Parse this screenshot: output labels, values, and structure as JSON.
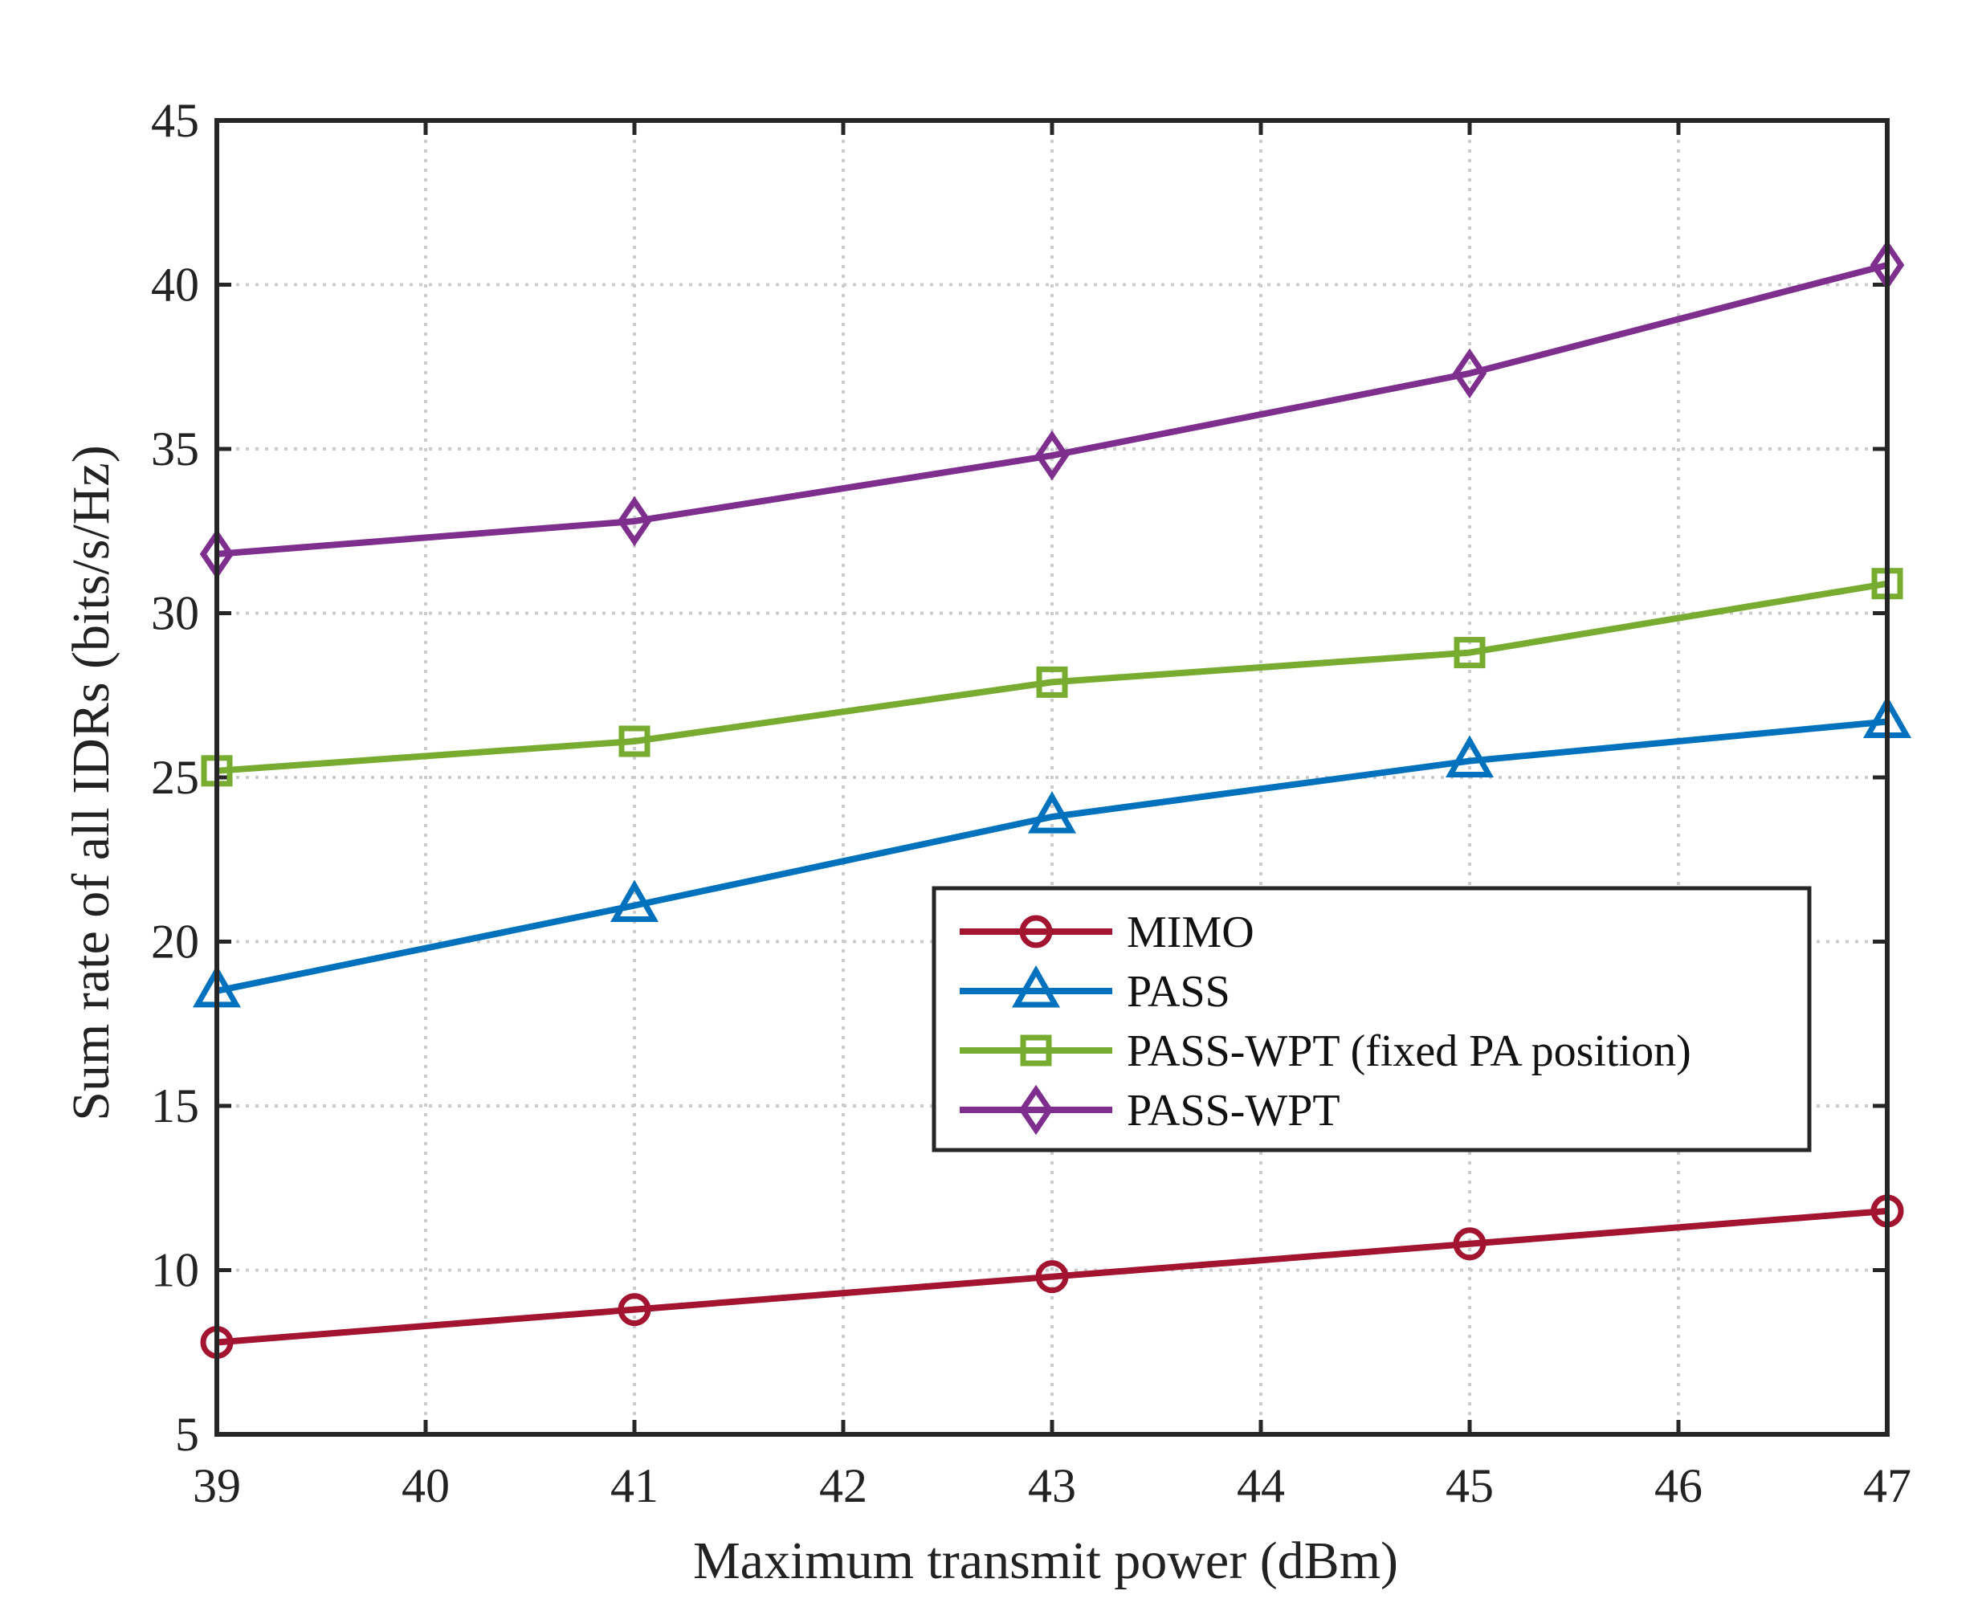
{
  "chart_data": {
    "type": "line",
    "title": "",
    "xlabel": "Maximum transmit power (dBm)",
    "ylabel": "Sum rate of all IDRs (bits/s/Hz)",
    "xlim": [
      39,
      47
    ],
    "ylim": [
      5,
      45
    ],
    "xticks": [
      39,
      40,
      41,
      42,
      43,
      44,
      45,
      46,
      47
    ],
    "yticks": [
      5,
      10,
      15,
      20,
      25,
      30,
      35,
      40,
      45
    ],
    "grid": true,
    "legend_position": "center-right",
    "x": [
      39,
      41,
      43,
      45,
      47
    ],
    "series": [
      {
        "name": "MIMO",
        "color": "#a2142f",
        "marker": "circle",
        "values": [
          7.8,
          8.8,
          9.8,
          10.8,
          11.8
        ]
      },
      {
        "name": "PASS",
        "color": "#0072bd",
        "marker": "triangle",
        "values": [
          18.5,
          21.1,
          23.8,
          25.5,
          26.7
        ]
      },
      {
        "name": "PASS-WPT (fixed PA position)",
        "color": "#77ac30",
        "marker": "square",
        "values": [
          25.2,
          26.1,
          27.9,
          28.8,
          30.9
        ]
      },
      {
        "name": "PASS-WPT",
        "color": "#7e2f8e",
        "marker": "diamond",
        "values": [
          31.8,
          32.8,
          34.8,
          37.3,
          40.6
        ]
      }
    ]
  }
}
